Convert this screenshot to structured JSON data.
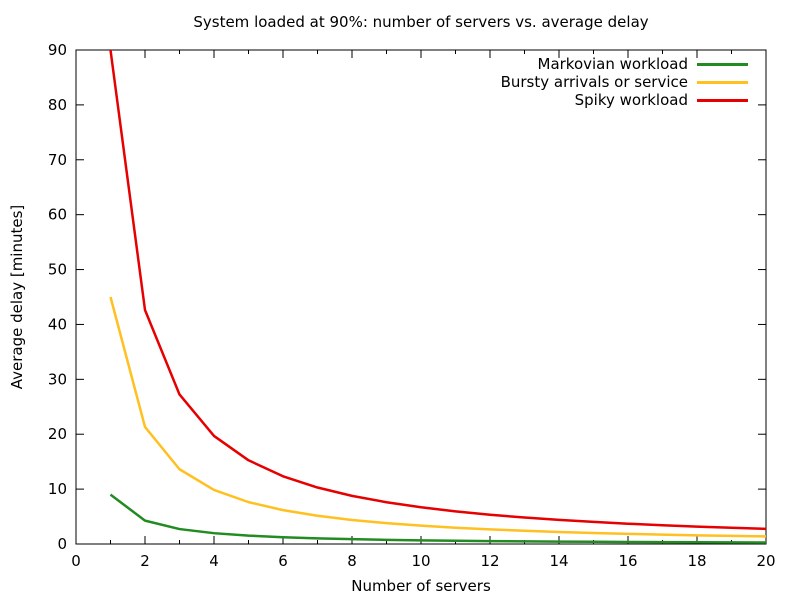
{
  "title": "System loaded at 90%: number of servers vs. average delay",
  "chart_data": {
    "type": "line",
    "title": "System loaded at 90%: number of servers vs. average delay",
    "xlabel": "Number of servers",
    "ylabel": "Average delay [minutes]",
    "xlim": [
      0,
      20
    ],
    "ylim": [
      0,
      90
    ],
    "xticks": [
      0,
      2,
      4,
      6,
      8,
      10,
      12,
      14,
      16,
      18,
      20
    ],
    "xticks_minor": [
      1,
      3,
      5,
      7,
      9,
      11,
      13,
      15,
      17,
      19
    ],
    "yticks": [
      0,
      10,
      20,
      30,
      40,
      50,
      60,
      70,
      80,
      90
    ],
    "grid": false,
    "legend_position": "top-right",
    "axis_color": "#000000",
    "x": [
      1,
      2,
      3,
      4,
      5,
      6,
      7,
      8,
      9,
      10,
      11,
      12,
      13,
      14,
      15,
      16,
      17,
      18,
      19,
      20
    ],
    "series": [
      {
        "name": "Markovian workload",
        "color": "#228b22",
        "values": [
          9.0,
          4.26,
          2.72,
          1.97,
          1.53,
          1.23,
          1.03,
          0.88,
          0.76,
          0.67,
          0.59,
          0.53,
          0.48,
          0.44,
          0.4,
          0.37,
          0.34,
          0.32,
          0.3,
          0.28
        ]
      },
      {
        "name": "Bursty arrivals or service",
        "color": "#ffc020",
        "values": [
          45.0,
          21.32,
          13.62,
          9.85,
          7.63,
          6.17,
          5.14,
          4.38,
          3.8,
          3.34,
          2.97,
          2.67,
          2.41,
          2.19,
          2.01,
          1.85,
          1.71,
          1.58,
          1.47,
          1.38
        ]
      },
      {
        "name": "Spiky workload",
        "color": "#e60000",
        "values": [
          90.0,
          42.63,
          27.24,
          19.69,
          15.25,
          12.34,
          10.29,
          8.77,
          7.61,
          6.69,
          5.95,
          5.33,
          4.82,
          4.39,
          4.02,
          3.7,
          3.42,
          3.17,
          2.95,
          2.75
        ]
      }
    ]
  }
}
